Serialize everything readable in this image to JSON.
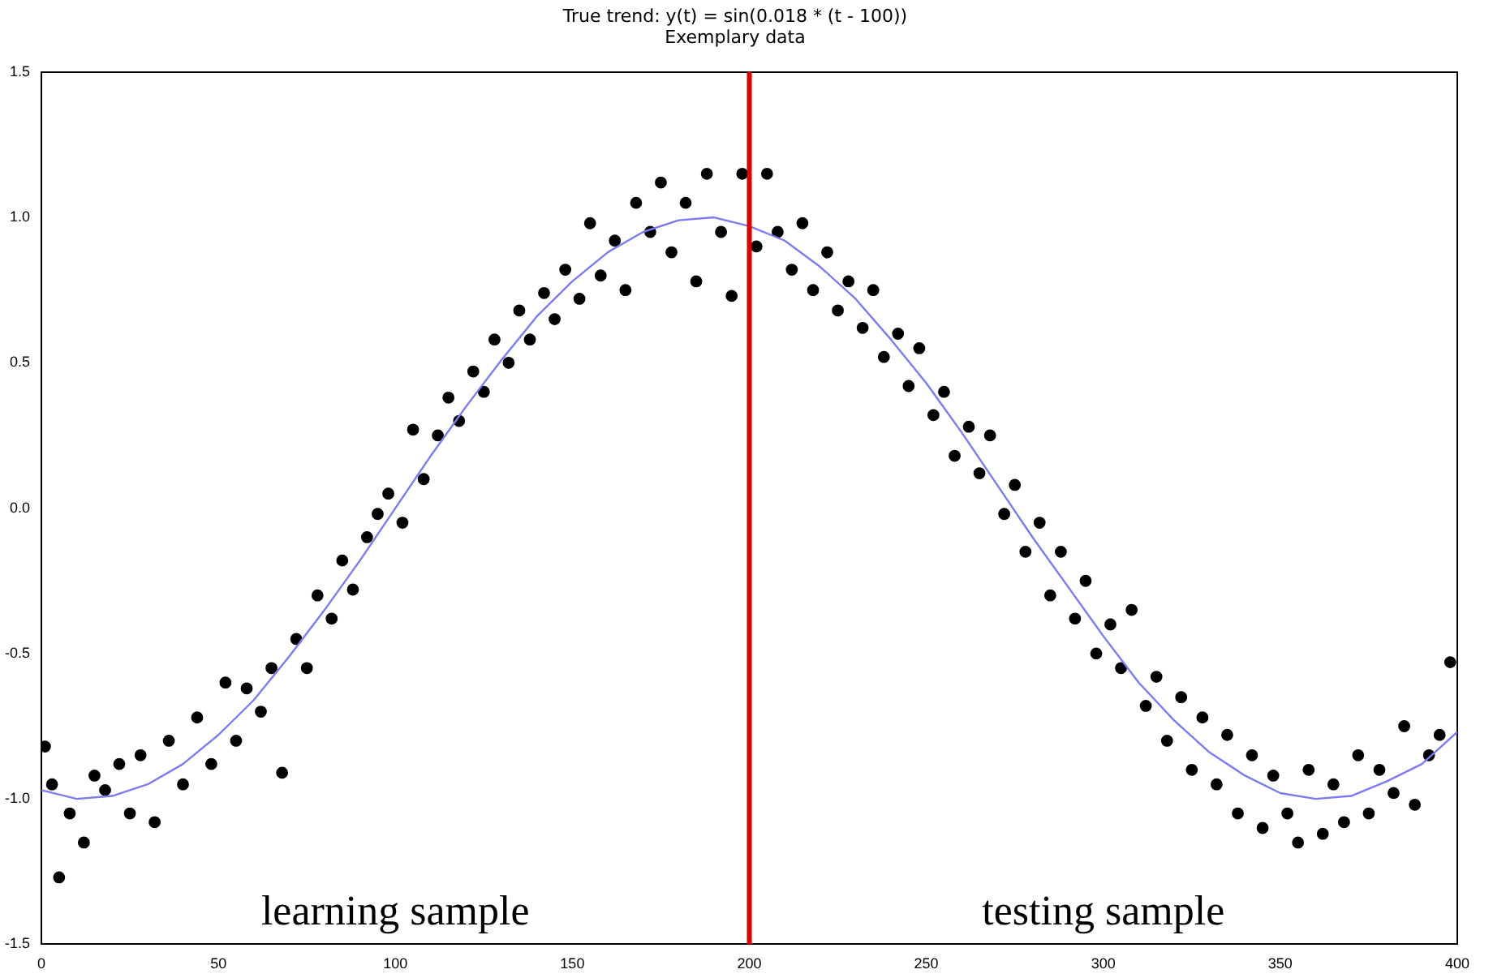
{
  "chart_data": {
    "type": "scatter",
    "title": "True trend: y(t) = sin(0.018 * (t - 100))",
    "subtitle": "Exemplary data",
    "series": [
      {
        "color": "#000000",
        "marker": "circle",
        "x": [
          1,
          3,
          5,
          8,
          12,
          15,
          18,
          22,
          25,
          28,
          32,
          36,
          40,
          44,
          48,
          52,
          55,
          58,
          62,
          65,
          68,
          72,
          75,
          78,
          82,
          85,
          88,
          92,
          95,
          98,
          102,
          105,
          108,
          112,
          115,
          118,
          122,
          125,
          128,
          132,
          135,
          138,
          142,
          145,
          148,
          152,
          155,
          158,
          162,
          165,
          168,
          172,
          175,
          178,
          182,
          185,
          188,
          192,
          195,
          198,
          202,
          205,
          208,
          212,
          215,
          218,
          222,
          225,
          228,
          232,
          235,
          238,
          242,
          245,
          248,
          252,
          255,
          258,
          262,
          265,
          268,
          272,
          275,
          278,
          282,
          285,
          288,
          292,
          295,
          298,
          302,
          305,
          308,
          312,
          315,
          318,
          322,
          325,
          328,
          332,
          335,
          338,
          342,
          345,
          348,
          352,
          355,
          358,
          362,
          365,
          368,
          372,
          375,
          378,
          382,
          385,
          388,
          392,
          395,
          398
        ],
        "values": [
          -0.82,
          -0.95,
          -1.27,
          -1.05,
          -1.15,
          -0.92,
          -0.97,
          -0.88,
          -1.05,
          -0.85,
          -1.08,
          -0.8,
          -0.95,
          -0.72,
          -0.88,
          -0.6,
          -0.8,
          -0.62,
          -0.7,
          -0.55,
          -0.91,
          -0.45,
          -0.55,
          -0.3,
          -0.38,
          -0.18,
          -0.28,
          -0.1,
          -0.02,
          0.05,
          -0.05,
          0.27,
          0.1,
          0.25,
          0.38,
          0.3,
          0.47,
          0.4,
          0.58,
          0.5,
          0.68,
          0.58,
          0.74,
          0.65,
          0.82,
          0.72,
          0.98,
          0.8,
          0.92,
          0.75,
          1.05,
          0.95,
          1.12,
          0.88,
          1.05,
          0.78,
          1.15,
          0.95,
          0.73,
          1.15,
          0.9,
          1.15,
          0.95,
          0.82,
          0.98,
          0.75,
          0.88,
          0.68,
          0.78,
          0.62,
          0.75,
          0.52,
          0.6,
          0.42,
          0.55,
          0.32,
          0.4,
          0.18,
          0.28,
          0.12,
          0.25,
          -0.02,
          0.08,
          -0.15,
          -0.05,
          -0.3,
          -0.15,
          -0.38,
          -0.25,
          -0.5,
          -0.4,
          -0.55,
          -0.35,
          -0.68,
          -0.58,
          -0.8,
          -0.65,
          -0.9,
          -0.72,
          -0.95,
          -0.78,
          -1.05,
          -0.85,
          -1.1,
          -0.92,
          -1.05,
          -1.15,
          -0.9,
          -1.12,
          -0.95,
          -1.08,
          -0.85,
          -1.05,
          -0.9,
          -0.98,
          -0.75,
          -1.02,
          -0.85,
          -0.78,
          -0.53
        ]
      },
      {
        "type": "line",
        "color": "#7b7bf0",
        "marker": "none",
        "line_style": "solid",
        "x": [
          0,
          10,
          20,
          30,
          40,
          50,
          60,
          70,
          80,
          90,
          100,
          110,
          120,
          130,
          140,
          150,
          160,
          170,
          180,
          190,
          200,
          210,
          220,
          230,
          240,
          250,
          260,
          270,
          280,
          290,
          300,
          310,
          320,
          330,
          340,
          350,
          360,
          370,
          380,
          390,
          400
        ],
        "values": [
          -0.97,
          -1.0,
          -0.99,
          -0.95,
          -0.88,
          -0.78,
          -0.66,
          -0.51,
          -0.35,
          -0.18,
          0,
          0.18,
          0.35,
          0.51,
          0.66,
          0.78,
          0.88,
          0.95,
          0.99,
          1.0,
          0.97,
          0.92,
          0.83,
          0.72,
          0.58,
          0.43,
          0.26,
          0.08,
          -0.1,
          -0.27,
          -0.44,
          -0.6,
          -0.73,
          -0.84,
          -0.92,
          -0.98,
          -1.0,
          -0.99,
          -0.94,
          -0.88,
          -0.77
        ]
      }
    ],
    "xlim": [
      0,
      400
    ],
    "xticks": [
      0,
      50,
      100,
      150,
      200,
      250,
      300,
      350,
      400
    ],
    "ylim": [
      -1.5,
      1.5
    ],
    "yticks": [
      {
        "value": -1.5,
        "label": "-1.5"
      },
      {
        "value": -1,
        "label": "-1.0"
      },
      {
        "value": -0.5,
        "label": "-0.5"
      },
      {
        "value": 0,
        "label": "0.0"
      },
      {
        "value": 0.5,
        "label": "0.5"
      },
      {
        "value": 1,
        "label": "1.0"
      },
      {
        "value": 1.5,
        "label": "1.5"
      }
    ],
    "ref_lines": [
      {
        "axis": "x",
        "value": 200,
        "color": "#dd0000"
      }
    ],
    "annotations": [
      "learning sample",
      "testing sample"
    ],
    "grid": false,
    "legend": false
  }
}
